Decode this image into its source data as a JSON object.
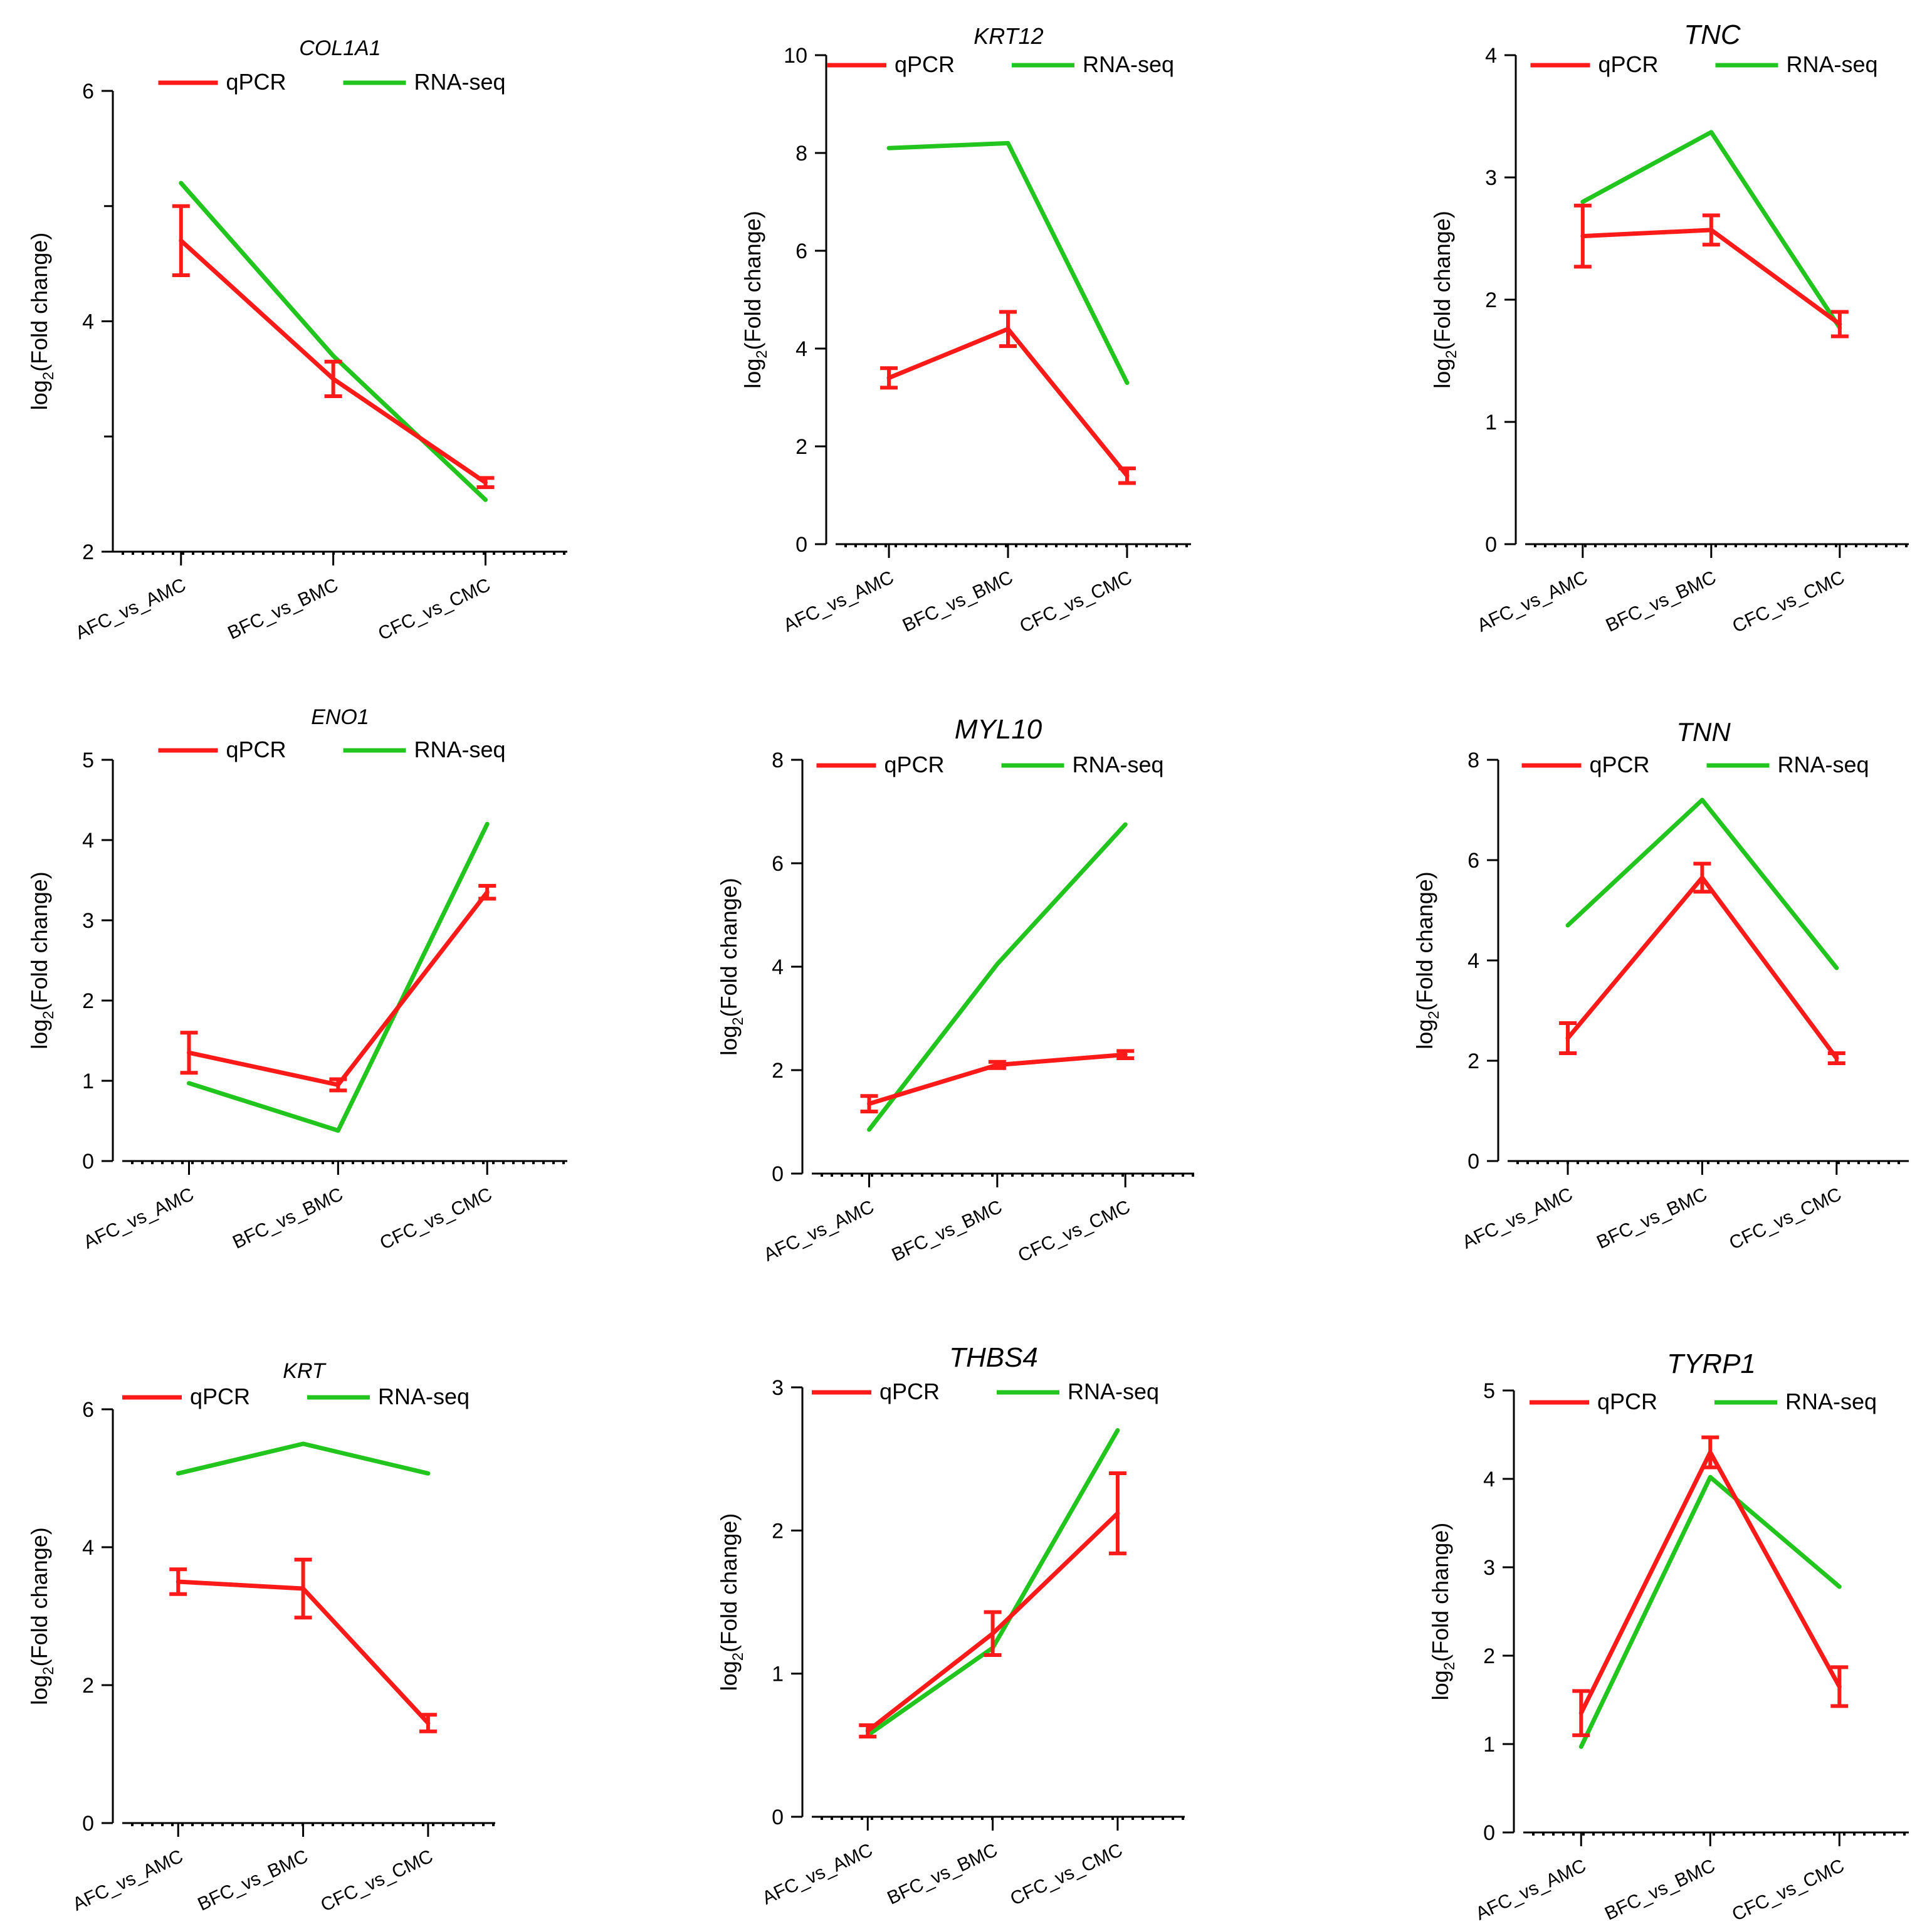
{
  "figure": {
    "qpcr_color": "#ff1a1a",
    "rnaseq_color": "#22c51e",
    "axis_color": "#000000"
  },
  "chart_data": [
    {
      "type": "line",
      "title": "COL1A1",
      "ylabel_base": "log",
      "ylabel_sub": "2",
      "ylabel_rest": "(Fold change)",
      "categories": [
        "AFC_vs_AMC",
        "BFC_vs_BMC",
        "CFC_vs_CMC"
      ],
      "ylim": [
        2,
        6
      ],
      "yticks": [
        2,
        4,
        6
      ],
      "ytick_labels": [
        "2",
        "4",
        "6"
      ],
      "y_minor_ticks": [
        3,
        5
      ],
      "legend": [
        "qPCR",
        "RNA-seq"
      ],
      "series": [
        {
          "name": "qPCR",
          "values": [
            4.7,
            3.5,
            2.6
          ],
          "errors": [
            0.3,
            0.15,
            0.04
          ]
        },
        {
          "name": "RNA-seq",
          "values": [
            5.2,
            3.7,
            2.45
          ]
        }
      ]
    },
    {
      "type": "line",
      "title": "KRT12",
      "ylabel_base": "log",
      "ylabel_sub": "2",
      "ylabel_rest": "(Fold change)",
      "categories": [
        "AFC_vs_AMC",
        "BFC_vs_BMC",
        "CFC_vs_CMC"
      ],
      "ylim": [
        0,
        10
      ],
      "yticks": [
        0,
        2,
        4,
        6,
        8,
        10
      ],
      "ytick_labels": [
        "0",
        "2",
        "4",
        "6",
        "8",
        "10"
      ],
      "legend": [
        "qPCR",
        "RNA-seq"
      ],
      "series": [
        {
          "name": "qPCR",
          "values": [
            3.4,
            4.4,
            1.4
          ],
          "errors": [
            0.2,
            0.35,
            0.15
          ]
        },
        {
          "name": "RNA-seq",
          "values": [
            8.1,
            8.2,
            3.3
          ]
        }
      ]
    },
    {
      "type": "line",
      "title": "TNC",
      "ylabel_base": "log",
      "ylabel_sub": "2",
      "ylabel_rest": "(Fold change)",
      "categories": [
        "AFC_vs_AMC",
        "BFC_vs_BMC",
        "CFC_vs_CMC"
      ],
      "ylim": [
        0,
        4
      ],
      "yticks": [
        0,
        1,
        2,
        3,
        4
      ],
      "ytick_labels": [
        "0",
        "1",
        "2",
        "3",
        "4"
      ],
      "legend": [
        "qPCR",
        "RNA-seq"
      ],
      "series": [
        {
          "name": "qPCR",
          "values": [
            2.52,
            2.57,
            1.8
          ],
          "errors": [
            0.25,
            0.12,
            0.1
          ]
        },
        {
          "name": "RNA-seq",
          "values": [
            2.8,
            3.37,
            1.77
          ]
        }
      ]
    },
    {
      "type": "line",
      "title": "ENO1",
      "ylabel_base": "log",
      "ylabel_sub": "2",
      "ylabel_rest": "(Fold change)",
      "categories": [
        "AFC_vs_AMC",
        "BFC_vs_BMC",
        "CFC_vs_CMC"
      ],
      "ylim": [
        0,
        5
      ],
      "yticks": [
        0,
        1,
        2,
        3,
        4,
        5
      ],
      "ytick_labels": [
        "0",
        "1",
        "2",
        "3",
        "4",
        "5"
      ],
      "legend": [
        "qPCR",
        "RNA-seq"
      ],
      "series": [
        {
          "name": "qPCR",
          "values": [
            1.35,
            0.95,
            3.35
          ],
          "errors": [
            0.25,
            0.07,
            0.08
          ]
        },
        {
          "name": "RNA-seq",
          "values": [
            0.97,
            0.38,
            4.2
          ]
        }
      ]
    },
    {
      "type": "line",
      "title": "MYL10",
      "ylabel_base": "log",
      "ylabel_sub": "2",
      "ylabel_rest": "(Fold change)",
      "categories": [
        "AFC_vs_AMC",
        "BFC_vs_BMC",
        "CFC_vs_CMC"
      ],
      "ylim": [
        0,
        8
      ],
      "yticks": [
        0,
        2,
        4,
        6,
        8
      ],
      "ytick_labels": [
        "0",
        "2",
        "4",
        "6",
        "8"
      ],
      "legend": [
        "qPCR",
        "RNA-seq"
      ],
      "series": [
        {
          "name": "qPCR",
          "values": [
            1.35,
            2.1,
            2.3
          ],
          "errors": [
            0.15,
            0.06,
            0.07
          ]
        },
        {
          "name": "RNA-seq",
          "values": [
            0.85,
            4.05,
            6.75
          ]
        }
      ]
    },
    {
      "type": "line",
      "title": "TNN",
      "ylabel_base": "log",
      "ylabel_sub": "2",
      "ylabel_rest": "(Fold change)",
      "categories": [
        "AFC_vs_AMC",
        "BFC_vs_BMC",
        "CFC_vs_CMC"
      ],
      "ylim": [
        0,
        8
      ],
      "yticks": [
        0,
        2,
        4,
        6,
        8
      ],
      "ytick_labels": [
        "0",
        "2",
        "4",
        "6",
        "8"
      ],
      "legend": [
        "qPCR",
        "RNA-seq"
      ],
      "series": [
        {
          "name": "qPCR",
          "values": [
            2.45,
            5.65,
            2.05
          ],
          "errors": [
            0.3,
            0.28,
            0.1
          ]
        },
        {
          "name": "RNA-seq",
          "values": [
            4.7,
            7.2,
            3.85
          ]
        }
      ]
    },
    {
      "type": "line",
      "title": "KRT",
      "ylabel_base": "log",
      "ylabel_sub": "2",
      "ylabel_rest": "(Fold change)",
      "categories": [
        "AFC_vs_AMC",
        "BFC_vs_BMC",
        "CFC_vs_CMC"
      ],
      "ylim": [
        0,
        6
      ],
      "yticks": [
        0,
        2,
        4,
        6
      ],
      "ytick_labels": [
        "0",
        "2",
        "4",
        "6"
      ],
      "legend": [
        "qPCR",
        "RNA-seq"
      ],
      "series": [
        {
          "name": "qPCR",
          "values": [
            3.5,
            3.4,
            1.45
          ],
          "errors": [
            0.18,
            0.42,
            0.12
          ]
        },
        {
          "name": "RNA-seq",
          "values": [
            5.07,
            5.5,
            5.07
          ]
        }
      ]
    },
    {
      "type": "line",
      "title": "THBS4",
      "ylabel_base": "log",
      "ylabel_sub": "2",
      "ylabel_rest": "(Fold change)",
      "categories": [
        "AFC_vs_AMC",
        "BFC_vs_BMC",
        "CFC_vs_CMC"
      ],
      "ylim": [
        0,
        3
      ],
      "yticks": [
        0,
        1,
        2,
        3
      ],
      "ytick_labels": [
        "0",
        "1",
        "2",
        "3"
      ],
      "legend": [
        "qPCR",
        "RNA-seq"
      ],
      "series": [
        {
          "name": "qPCR",
          "values": [
            0.6,
            1.28,
            2.12
          ],
          "errors": [
            0.04,
            0.15,
            0.28
          ]
        },
        {
          "name": "RNA-seq",
          "values": [
            0.57,
            1.18,
            2.7
          ]
        }
      ]
    },
    {
      "type": "line",
      "title": "TYRP1",
      "ylabel_base": "log",
      "ylabel_sub": "2",
      "ylabel_rest": "(Fold change)",
      "categories": [
        "AFC_vs_AMC",
        "BFC_vs_BMC",
        "CFC_vs_CMC"
      ],
      "ylim": [
        0,
        5
      ],
      "yticks": [
        0,
        1,
        2,
        3,
        4,
        5
      ],
      "ytick_labels": [
        "0",
        "1",
        "2",
        "3",
        "4",
        "5"
      ],
      "legend": [
        "qPCR",
        "RNA-seq"
      ],
      "series": [
        {
          "name": "qPCR",
          "values": [
            1.35,
            4.3,
            1.65
          ],
          "errors": [
            0.25,
            0.17,
            0.22
          ]
        },
        {
          "name": "RNA-seq",
          "values": [
            0.97,
            4.02,
            2.78
          ]
        }
      ]
    }
  ]
}
